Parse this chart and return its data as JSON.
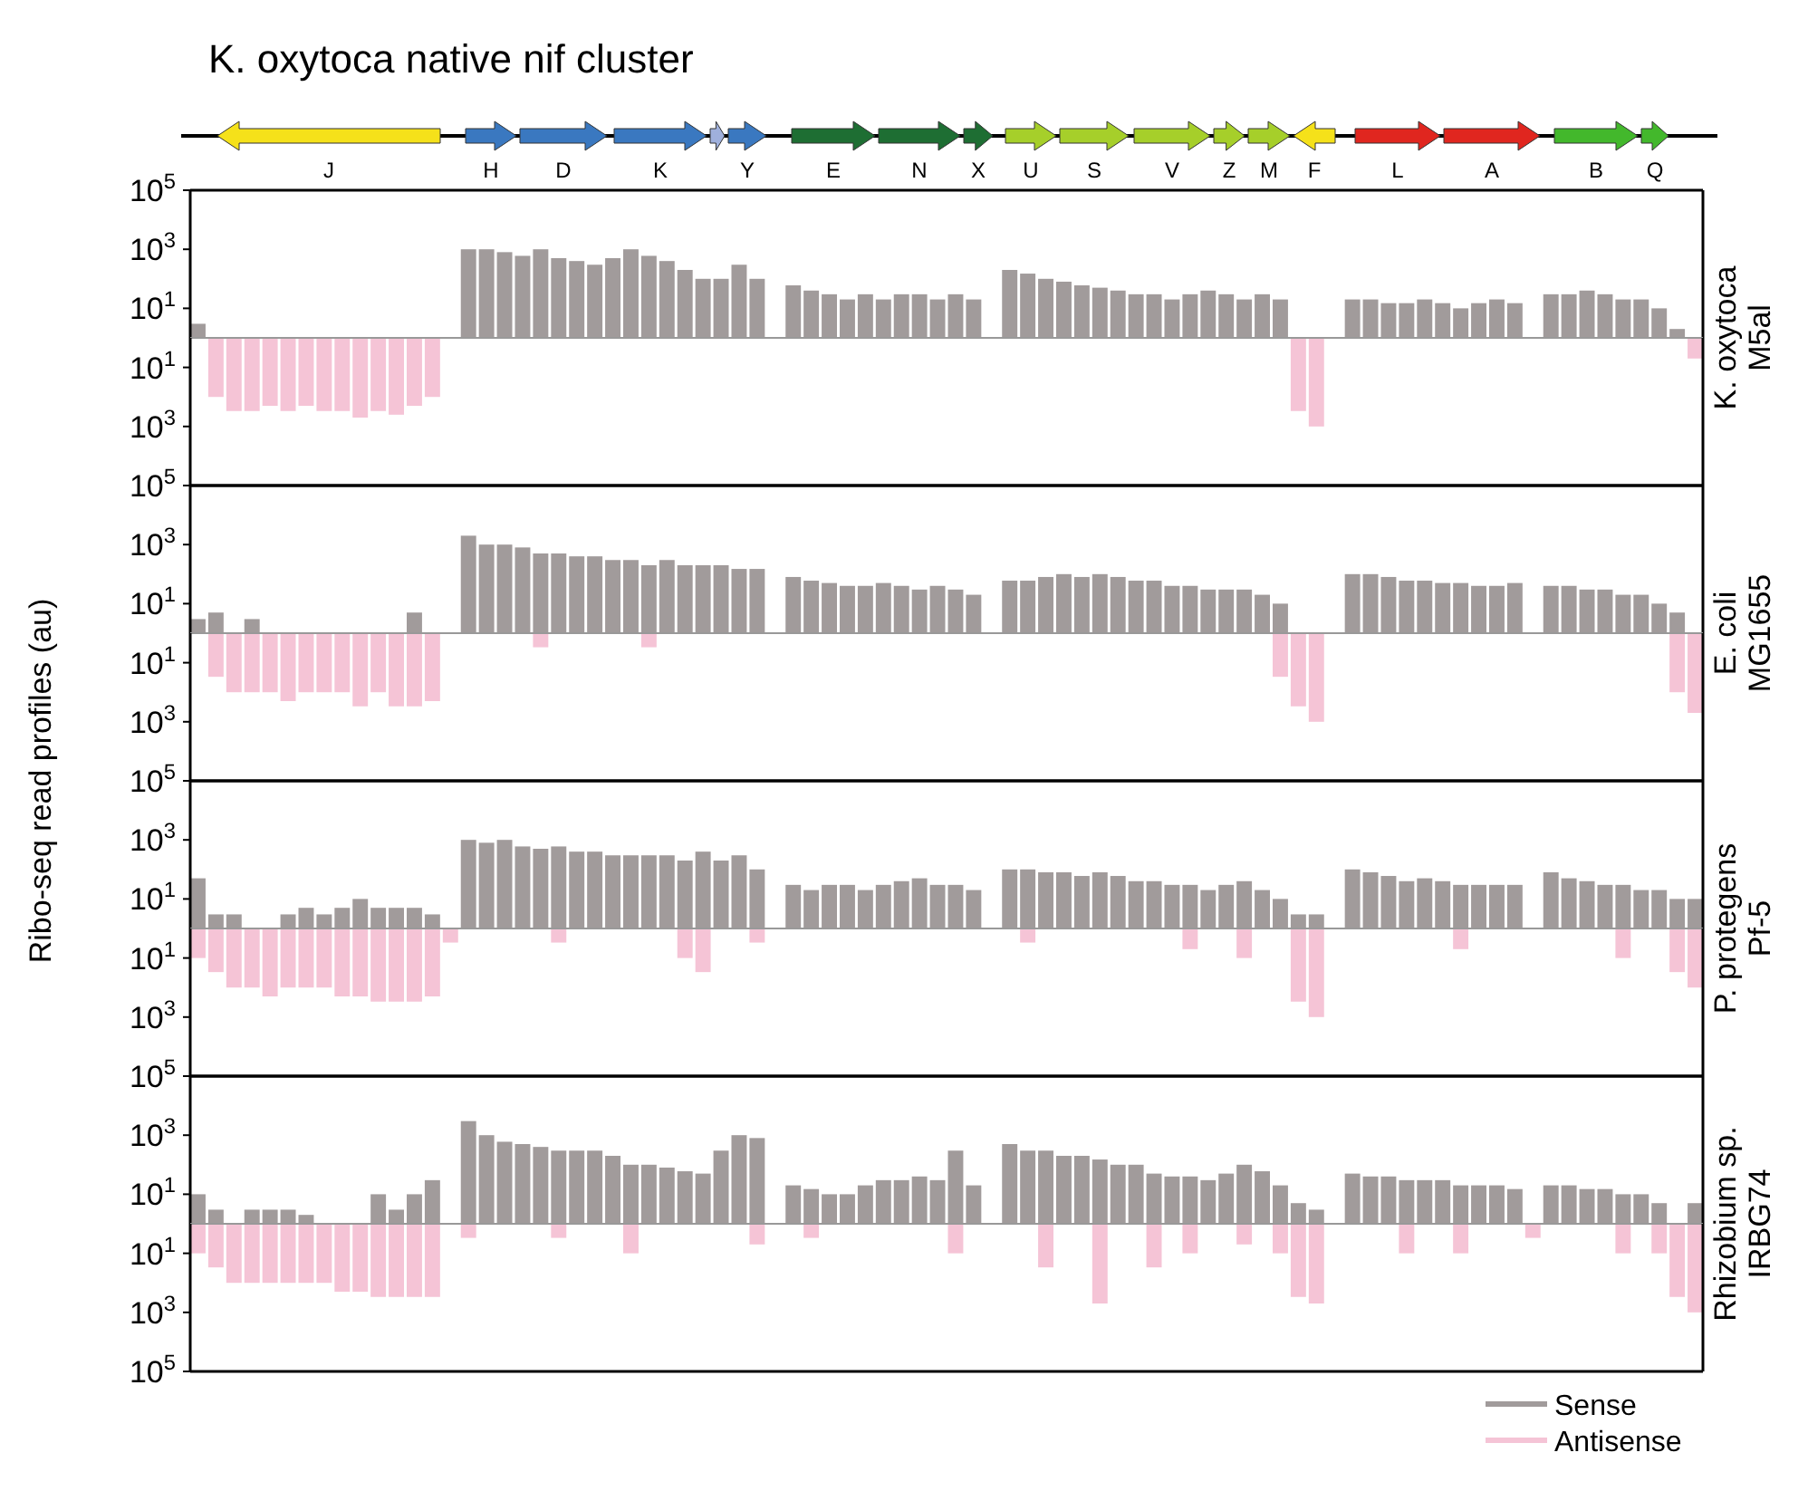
{
  "chart_data": [
    {
      "type": "bar",
      "title": "K. oxytoca native nif cluster",
      "y2label": "K. oxytoca M5al",
      "annotations": [
        "J",
        "H",
        "D",
        "K",
        "Y",
        "E",
        "N",
        "X",
        "U",
        "S",
        "V",
        "Z",
        "M",
        "F",
        "L",
        "A",
        "B",
        "Q"
      ],
      "log": "y",
      "ylim": [
        1,
        100000
      ],
      "yticks": [
        {
          "value": 10,
          "label": "10$^{1}$"
        },
        {
          "value": 1000,
          "label": "10$^{3}$"
        },
        {
          "value": 100000,
          "label": "10$^{5}$"
        }
      ],
      "grid": false,
      "legend": false,
      "categories": [
        null,
        null,
        null,
        null,
        null,
        null,
        null,
        null,
        null,
        null,
        null,
        null,
        null,
        null,
        null,
        null,
        null,
        null,
        null,
        null,
        null,
        null,
        null,
        null,
        null,
        null,
        null,
        null,
        null,
        null,
        null,
        null,
        null,
        null,
        null,
        null,
        null,
        null,
        null,
        null,
        null,
        null,
        null,
        null,
        null,
        null,
        null,
        null,
        null,
        null,
        null,
        null,
        null,
        null,
        null,
        null,
        null,
        null,
        null,
        null,
        null,
        null,
        null,
        null,
        null,
        null,
        null,
        null,
        null,
        null,
        null,
        null,
        null,
        null,
        null,
        null,
        null,
        null,
        null,
        null,
        null,
        null,
        null,
        null
      ],
      "series": [
        {
          "color": "#a19b9b",
          "values": [
            3,
            null,
            null,
            null,
            null,
            null,
            null,
            null,
            null,
            null,
            null,
            null,
            null,
            null,
            null,
            1000,
            1000,
            800,
            600,
            1000,
            500,
            400,
            300,
            500,
            1000,
            600,
            400,
            200,
            100,
            100,
            300,
            100,
            null,
            60,
            40,
            30,
            20,
            30,
            20,
            30,
            30,
            20,
            30,
            20,
            null,
            200,
            150,
            100,
            80,
            60,
            50,
            40,
            30,
            30,
            20,
            30,
            40,
            30,
            20,
            30,
            20,
            null,
            null,
            null,
            20,
            20,
            15,
            15,
            20,
            15,
            10,
            15,
            20,
            15,
            null,
            30,
            30,
            40,
            30,
            20,
            20,
            10,
            2,
            null
          ]
        }
      ]
    },
    {
      "type": "bar",
      "log": "y",
      "ylim": [
        100000,
        1
      ],
      "yticks": [
        {
          "value": 10,
          "label": "10$^{1}$"
        },
        {
          "value": 1000,
          "label": "10$^{3}$"
        }
      ],
      "grid": false,
      "legend": false,
      "categories": [
        null,
        null,
        null,
        null,
        null,
        null,
        null,
        null,
        null,
        null,
        null,
        null,
        null,
        null,
        null,
        null,
        null,
        null,
        null,
        null,
        null,
        null,
        null,
        null,
        null,
        null,
        null,
        null,
        null,
        null,
        null,
        null,
        null,
        null,
        null,
        null,
        null,
        null,
        null,
        null,
        null,
        null,
        null,
        null,
        null,
        null,
        null,
        null,
        null,
        null,
        null,
        null,
        null,
        null,
        null,
        null,
        null,
        null,
        null,
        null,
        null,
        null,
        null,
        null,
        null,
        null,
        null,
        null,
        null,
        null,
        null,
        null,
        null,
        null,
        null,
        null,
        null,
        null,
        null,
        null,
        null,
        null,
        null,
        null
      ],
      "series": [
        {
          "color": "#f5c4d6",
          "values": [
            null,
            100,
            300,
            300,
            200,
            300,
            200,
            300,
            300,
            500,
            300,
            400,
            200,
            100,
            null,
            null,
            null,
            null,
            null,
            null,
            null,
            null,
            null,
            null,
            null,
            null,
            null,
            null,
            null,
            null,
            null,
            null,
            null,
            null,
            null,
            null,
            null,
            null,
            null,
            null,
            null,
            null,
            null,
            null,
            null,
            null,
            null,
            null,
            null,
            null,
            null,
            null,
            null,
            null,
            null,
            null,
            null,
            null,
            null,
            null,
            null,
            300,
            1000,
            null,
            null,
            null,
            null,
            null,
            null,
            null,
            null,
            null,
            null,
            null,
            null,
            null,
            null,
            null,
            null,
            null,
            null,
            null,
            null,
            5
          ]
        }
      ]
    },
    {
      "type": "bar",
      "y2label": "E. coli MG1655",
      "log": "y",
      "ylim": [
        1,
        100000
      ],
      "yticks": [
        {
          "value": 10,
          "label": "10$^{1}$"
        },
        {
          "value": 1000,
          "label": "10$^{3}$"
        },
        {
          "value": 100000,
          "label": "10$^{5}$"
        }
      ],
      "grid": false,
      "legend": false,
      "categories": [
        null,
        null,
        null,
        null,
        null,
        null,
        null,
        null,
        null,
        null,
        null,
        null,
        null,
        null,
        null,
        null,
        null,
        null,
        null,
        null,
        null,
        null,
        null,
        null,
        null,
        null,
        null,
        null,
        null,
        null,
        null,
        null,
        null,
        null,
        null,
        null,
        null,
        null,
        null,
        null,
        null,
        null,
        null,
        null,
        null,
        null,
        null,
        null,
        null,
        null,
        null,
        null,
        null,
        null,
        null,
        null,
        null,
        null,
        null,
        null,
        null,
        null,
        null,
        null,
        null,
        null,
        null,
        null,
        null,
        null,
        null,
        null,
        null,
        null,
        null,
        null,
        null,
        null,
        null,
        null,
        null,
        null,
        null,
        null
      ],
      "series": [
        {
          "color": "#a19b9b",
          "values": [
            3,
            5,
            null,
            3,
            null,
            null,
            null,
            null,
            null,
            null,
            null,
            null,
            5,
            null,
            null,
            2000,
            1000,
            1000,
            800,
            500,
            500,
            400,
            400,
            300,
            300,
            200,
            300,
            200,
            200,
            200,
            150,
            150,
            null,
            80,
            60,
            50,
            40,
            40,
            50,
            40,
            30,
            40,
            30,
            20,
            null,
            60,
            60,
            80,
            100,
            80,
            100,
            80,
            60,
            60,
            40,
            40,
            30,
            30,
            30,
            20,
            10,
            null,
            null,
            null,
            100,
            100,
            80,
            60,
            60,
            50,
            50,
            40,
            40,
            50,
            null,
            40,
            40,
            30,
            30,
            20,
            20,
            10,
            5,
            null
          ]
        }
      ]
    },
    {
      "type": "bar",
      "log": "y",
      "ylim": [
        100000,
        1
      ],
      "yticks": [
        {
          "value": 10,
          "label": "10$^{1}$"
        },
        {
          "value": 1000,
          "label": "10$^{3}$"
        }
      ],
      "grid": false,
      "legend": false,
      "categories": [
        null,
        null,
        null,
        null,
        null,
        null,
        null,
        null,
        null,
        null,
        null,
        null,
        null,
        null,
        null,
        null,
        null,
        null,
        null,
        null,
        null,
        null,
        null,
        null,
        null,
        null,
        null,
        null,
        null,
        null,
        null,
        null,
        null,
        null,
        null,
        null,
        null,
        null,
        null,
        null,
        null,
        null,
        null,
        null,
        null,
        null,
        null,
        null,
        null,
        null,
        null,
        null,
        null,
        null,
        null,
        null,
        null,
        null,
        null,
        null,
        null,
        null,
        null,
        null,
        null,
        null,
        null,
        null,
        null,
        null,
        null,
        null,
        null,
        null,
        null,
        null,
        null,
        null,
        null,
        null,
        null,
        null,
        null,
        null
      ],
      "ylabel": "Ribo-seq read profiles (au)",
      "series": [
        {
          "color": "#f5c4d6",
          "values": [
            null,
            30,
            100,
            100,
            100,
            200,
            100,
            100,
            100,
            300,
            100,
            300,
            300,
            200,
            null,
            null,
            null,
            null,
            null,
            3,
            null,
            null,
            null,
            null,
            null,
            3,
            null,
            null,
            null,
            null,
            null,
            null,
            null,
            null,
            null,
            null,
            null,
            null,
            null,
            null,
            null,
            null,
            null,
            null,
            null,
            null,
            null,
            null,
            null,
            null,
            null,
            null,
            null,
            null,
            null,
            null,
            null,
            null,
            null,
            null,
            30,
            300,
            1000,
            null,
            null,
            null,
            null,
            null,
            null,
            null,
            null,
            null,
            null,
            null,
            null,
            null,
            null,
            null,
            null,
            null,
            null,
            null,
            100,
            500
          ]
        }
      ]
    },
    {
      "type": "bar",
      "y2label": "P. protegens Pf-5",
      "log": "y",
      "ylim": [
        1,
        100000
      ],
      "yticks": [
        {
          "value": 10,
          "label": "10$^{1}$"
        },
        {
          "value": 1000,
          "label": "10$^{3}$"
        },
        {
          "value": 100000,
          "label": "10$^{5}$"
        }
      ],
      "grid": false,
      "legend": false,
      "categories": [
        null,
        null,
        null,
        null,
        null,
        null,
        null,
        null,
        null,
        null,
        null,
        null,
        null,
        null,
        null,
        null,
        null,
        null,
        null,
        null,
        null,
        null,
        null,
        null,
        null,
        null,
        null,
        null,
        null,
        null,
        null,
        null,
        null,
        null,
        null,
        null,
        null,
        null,
        null,
        null,
        null,
        null,
        null,
        null,
        null,
        null,
        null,
        null,
        null,
        null,
        null,
        null,
        null,
        null,
        null,
        null,
        null,
        null,
        null,
        null,
        null,
        null,
        null,
        null,
        null,
        null,
        null,
        null,
        null,
        null,
        null,
        null,
        null,
        null,
        null,
        null,
        null,
        null,
        null,
        null,
        null,
        null,
        null,
        null
      ],
      "series": [
        {
          "color": "#a19b9b",
          "values": [
            50,
            3,
            3,
            null,
            null,
            3,
            5,
            3,
            5,
            10,
            5,
            5,
            5,
            3,
            null,
            1000,
            800,
            1000,
            600,
            500,
            600,
            400,
            400,
            300,
            300,
            300,
            300,
            200,
            400,
            200,
            300,
            100,
            null,
            30,
            20,
            30,
            30,
            20,
            30,
            40,
            50,
            30,
            30,
            20,
            null,
            100,
            100,
            80,
            80,
            60,
            80,
            60,
            40,
            40,
            30,
            30,
            20,
            30,
            40,
            20,
            10,
            3,
            3,
            null,
            100,
            80,
            60,
            40,
            50,
            40,
            30,
            30,
            30,
            30,
            null,
            80,
            50,
            40,
            30,
            30,
            20,
            20,
            10,
            10
          ]
        }
      ]
    },
    {
      "type": "bar",
      "log": "y",
      "ylim": [
        100000,
        1
      ],
      "yticks": [
        {
          "value": 10,
          "label": "10$^{1}$"
        },
        {
          "value": 1000,
          "label": "10$^{3}$"
        }
      ],
      "grid": false,
      "legend": false,
      "categories": [
        null,
        null,
        null,
        null,
        null,
        null,
        null,
        null,
        null,
        null,
        null,
        null,
        null,
        null,
        null,
        null,
        null,
        null,
        null,
        null,
        null,
        null,
        null,
        null,
        null,
        null,
        null,
        null,
        null,
        null,
        null,
        null,
        null,
        null,
        null,
        null,
        null,
        null,
        null,
        null,
        null,
        null,
        null,
        null,
        null,
        null,
        null,
        null,
        null,
        null,
        null,
        null,
        null,
        null,
        null,
        null,
        null,
        null,
        null,
        null,
        null,
        null,
        null,
        null,
        null,
        null,
        null,
        null,
        null,
        null,
        null,
        null,
        null,
        null,
        null,
        null,
        null,
        null,
        null,
        null,
        null,
        null,
        null,
        null
      ],
      "series": [
        {
          "color": "#f5c4d6",
          "values": [
            10,
            30,
            100,
            100,
            200,
            100,
            100,
            100,
            200,
            200,
            300,
            300,
            300,
            200,
            3,
            null,
            null,
            null,
            null,
            null,
            3,
            null,
            null,
            null,
            null,
            null,
            null,
            10,
            30,
            null,
            null,
            3,
            null,
            null,
            null,
            null,
            null,
            null,
            null,
            null,
            null,
            null,
            null,
            null,
            null,
            null,
            3,
            null,
            null,
            null,
            null,
            null,
            null,
            null,
            null,
            5,
            null,
            null,
            10,
            null,
            null,
            300,
            1000,
            null,
            null,
            null,
            null,
            null,
            null,
            null,
            5,
            null,
            null,
            null,
            null,
            null,
            null,
            null,
            null,
            10,
            null,
            null,
            30,
            100
          ]
        }
      ]
    },
    {
      "type": "bar",
      "y2label": "Rhizobium sp. IRBG74",
      "log": "y",
      "ylim": [
        1,
        100000
      ],
      "yticks": [
        {
          "value": 10,
          "label": "10$^{1}$"
        },
        {
          "value": 1000,
          "label": "10$^{3}$"
        },
        {
          "value": 100000,
          "label": "10$^{5}$"
        }
      ],
      "grid": false,
      "legend": "bottom right",
      "categories": [
        null,
        null,
        null,
        null,
        null,
        null,
        null,
        null,
        null,
        null,
        null,
        null,
        null,
        null,
        null,
        null,
        null,
        null,
        null,
        null,
        null,
        null,
        null,
        null,
        null,
        null,
        null,
        null,
        null,
        null,
        null,
        null,
        null,
        null,
        null,
        null,
        null,
        null,
        null,
        null,
        null,
        null,
        null,
        null,
        null,
        null,
        null,
        null,
        null,
        null,
        null,
        null,
        null,
        null,
        null,
        null,
        null,
        null,
        null,
        null,
        null,
        null,
        null,
        null,
        null,
        null,
        null,
        null,
        null,
        null,
        null,
        null,
        null,
        null,
        null,
        null,
        null,
        null,
        null,
        null,
        null,
        null,
        null,
        null
      ],
      "series": [
        {
          "name": "Sense",
          "color": "#a19b9b",
          "values": [
            10,
            3,
            null,
            3,
            3,
            3,
            2,
            null,
            null,
            null,
            10,
            3,
            10,
            30,
            null,
            3000,
            1000,
            600,
            500,
            400,
            300,
            300,
            300,
            200,
            100,
            100,
            80,
            60,
            50,
            300,
            1000,
            800,
            null,
            20,
            15,
            10,
            10,
            20,
            30,
            30,
            40,
            30,
            300,
            20,
            null,
            500,
            300,
            300,
            200,
            200,
            150,
            100,
            100,
            50,
            40,
            40,
            30,
            50,
            100,
            60,
            20,
            5,
            3,
            null,
            50,
            40,
            40,
            30,
            30,
            30,
            20,
            20,
            20,
            15,
            null,
            20,
            20,
            15,
            15,
            10,
            10,
            5,
            null,
            5
          ]
        }
      ]
    },
    {
      "type": "bar",
      "log": "y",
      "ylim": [
        100000,
        1
      ],
      "yticks": [
        {
          "value": 10,
          "label": "10$^{1}$"
        },
        {
          "value": 1000,
          "label": "10$^{3}$"
        },
        {
          "value": 100000,
          "label": "10$^{5}$"
        }
      ],
      "grid": false,
      "legend": "bottom right",
      "categories": [
        null,
        null,
        null,
        null,
        null,
        null,
        null,
        null,
        null,
        null,
        null,
        null,
        null,
        null,
        null,
        null,
        null,
        null,
        null,
        null,
        null,
        null,
        null,
        null,
        null,
        null,
        null,
        null,
        null,
        null,
        null,
        null,
        null,
        null,
        null,
        null,
        null,
        null,
        null,
        null,
        null,
        null,
        null,
        null,
        null,
        null,
        null,
        null,
        null,
        null,
        null,
        null,
        null,
        null,
        null,
        null,
        null,
        null,
        null,
        null,
        null,
        null,
        null,
        null,
        null,
        null,
        null,
        null,
        null,
        null,
        null,
        null,
        null,
        null,
        null,
        null,
        null,
        null,
        null,
        null,
        null,
        null,
        null,
        null
      ],
      "series": [
        {
          "name": "Antisense",
          "color": "#f5c4d6",
          "values": [
            10,
            30,
            100,
            100,
            100,
            100,
            100,
            100,
            200,
            200,
            300,
            300,
            300,
            300,
            null,
            3,
            null,
            null,
            null,
            null,
            3,
            null,
            null,
            null,
            10,
            null,
            null,
            null,
            null,
            null,
            null,
            5,
            null,
            null,
            3,
            null,
            null,
            null,
            null,
            null,
            null,
            null,
            10,
            null,
            null,
            null,
            null,
            30,
            null,
            null,
            500,
            null,
            null,
            30,
            null,
            10,
            null,
            null,
            5,
            null,
            10,
            300,
            500,
            null,
            null,
            null,
            null,
            10,
            null,
            null,
            10,
            null,
            null,
            null,
            3,
            null,
            null,
            null,
            null,
            10,
            null,
            10,
            300,
            1000
          ]
        }
      ]
    }
  ]
}
